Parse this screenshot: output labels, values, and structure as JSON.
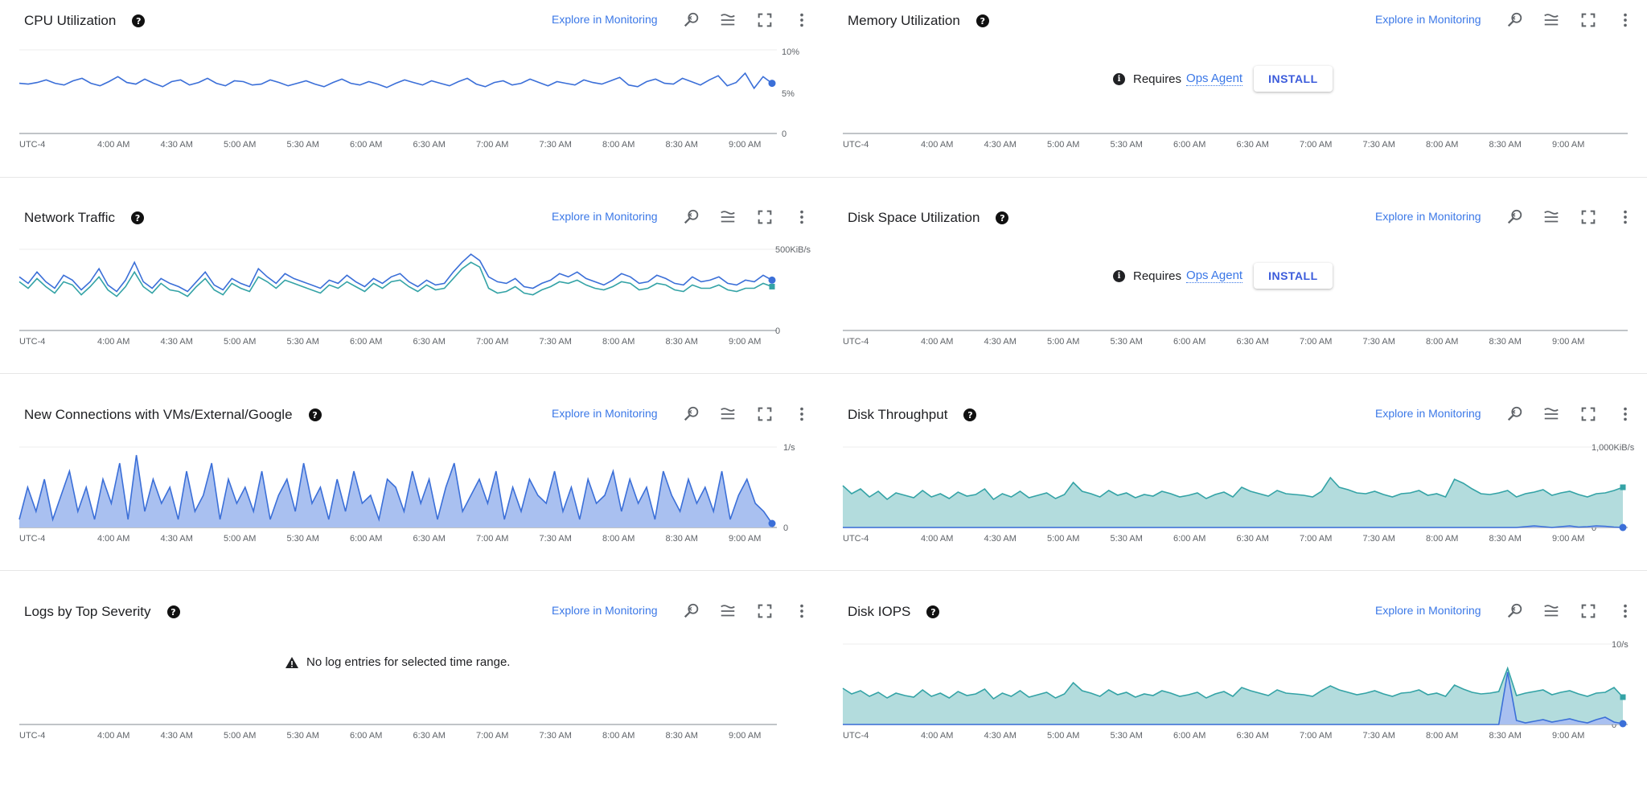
{
  "common": {
    "explore_label": "Explore in Monitoring",
    "timezone": "UTC-4",
    "time_ticks": [
      "4:00 AM",
      "4:30 AM",
      "5:00 AM",
      "5:30 AM",
      "6:00 AM",
      "6:30 AM",
      "7:00 AM",
      "7:30 AM",
      "8:00 AM",
      "8:30 AM",
      "9:00 AM"
    ],
    "requires_label": "Requires",
    "ops_agent_label": "Ops Agent",
    "install_label": "INSTALL",
    "colors": {
      "blue": "#3b6fd8",
      "teal": "#34a3a6",
      "link": "#3b78e7"
    }
  },
  "panels": {
    "cpu": {
      "title": "CPU Utilization",
      "y_ticks": [
        "10%",
        "5%",
        "0"
      ]
    },
    "memory": {
      "title": "Memory Utilization"
    },
    "network": {
      "title": "Network Traffic",
      "y_ticks": [
        "500KiB/s",
        "0"
      ]
    },
    "disk_space": {
      "title": "Disk Space Utilization"
    },
    "connections": {
      "title": "New Connections with VMs/External/Google",
      "y_ticks": [
        "1/s",
        "0"
      ]
    },
    "disk_throughput": {
      "title": "Disk Throughput",
      "y_ticks": [
        "1,000KiB/s",
        "0"
      ]
    },
    "logs": {
      "title": "Logs by Top Severity",
      "empty_message": "No log entries for selected time range."
    },
    "disk_iops": {
      "title": "Disk IOPS",
      "y_ticks": [
        "10/s",
        "0"
      ]
    }
  },
  "chart_data": [
    {
      "type": "line",
      "title": "CPU Utilization",
      "ylim": [
        0,
        10
      ],
      "y_unit": "%",
      "series": [
        {
          "color": "blue",
          "values": [
            6.0,
            5.9,
            6.1,
            6.4,
            6.0,
            5.8,
            6.3,
            6.6,
            6.0,
            5.7,
            6.2,
            6.8,
            6.1,
            5.9,
            6.5,
            6.0,
            5.6,
            6.2,
            6.4,
            5.8,
            6.1,
            6.6,
            6.0,
            5.7,
            6.3,
            6.2,
            5.8,
            5.9,
            6.4,
            6.1,
            5.7,
            6.0,
            6.3,
            5.9,
            5.6,
            6.1,
            6.5,
            6.0,
            5.8,
            6.2,
            5.9,
            5.5,
            6.0,
            6.4,
            6.1,
            5.8,
            6.3,
            6.0,
            5.7,
            6.2,
            6.6,
            5.9,
            5.6,
            6.1,
            6.3,
            5.8,
            6.0,
            6.5,
            6.1,
            5.7,
            6.2,
            6.0,
            5.8,
            6.4,
            6.1,
            5.9,
            6.3,
            6.7,
            5.8,
            5.6,
            6.2,
            6.5,
            6.0,
            5.9,
            6.6,
            6.2,
            5.8,
            6.4,
            6.9,
            5.7,
            6.1,
            7.2,
            5.4,
            6.8,
            6.0
          ]
        }
      ]
    },
    {
      "type": "line",
      "title": "Network Traffic",
      "ylim": [
        0,
        500
      ],
      "y_unit": "KiB/s",
      "series": [
        {
          "color": "blue",
          "values": [
            330,
            290,
            360,
            300,
            260,
            340,
            310,
            250,
            300,
            380,
            280,
            240,
            310,
            420,
            300,
            260,
            320,
            290,
            270,
            240,
            300,
            360,
            280,
            250,
            320,
            290,
            270,
            380,
            330,
            290,
            350,
            320,
            300,
            280,
            260,
            310,
            290,
            340,
            300,
            270,
            320,
            290,
            330,
            350,
            300,
            270,
            310,
            280,
            290,
            360,
            420,
            470,
            430,
            330,
            300,
            290,
            320,
            270,
            260,
            290,
            310,
            350,
            330,
            360,
            320,
            300,
            280,
            310,
            350,
            330,
            290,
            300,
            340,
            320,
            290,
            280,
            330,
            300,
            310,
            330,
            290,
            280,
            310,
            300,
            340,
            310
          ]
        },
        {
          "color": "teal",
          "values": [
            300,
            260,
            320,
            270,
            230,
            300,
            280,
            220,
            270,
            330,
            250,
            210,
            270,
            360,
            270,
            230,
            290,
            250,
            240,
            210,
            270,
            320,
            250,
            220,
            290,
            260,
            240,
            330,
            300,
            260,
            310,
            290,
            270,
            250,
            230,
            280,
            260,
            300,
            270,
            240,
            290,
            260,
            300,
            310,
            270,
            240,
            280,
            250,
            260,
            320,
            380,
            420,
            390,
            260,
            230,
            240,
            270,
            230,
            220,
            250,
            270,
            300,
            290,
            310,
            280,
            260,
            250,
            270,
            300,
            290,
            250,
            260,
            290,
            280,
            250,
            240,
            280,
            260,
            260,
            280,
            250,
            240,
            260,
            260,
            290,
            270
          ]
        }
      ]
    },
    {
      "type": "area",
      "title": "New Connections with VMs/External/Google",
      "ylim": [
        0,
        1
      ],
      "y_unit": "/s",
      "series": [
        {
          "color": "blue",
          "values": [
            0.1,
            0.5,
            0.2,
            0.6,
            0.1,
            0.4,
            0.7,
            0.2,
            0.5,
            0.1,
            0.6,
            0.3,
            0.8,
            0.1,
            0.9,
            0.2,
            0.6,
            0.3,
            0.5,
            0.1,
            0.7,
            0.2,
            0.4,
            0.8,
            0.1,
            0.6,
            0.3,
            0.5,
            0.2,
            0.7,
            0.1,
            0.4,
            0.6,
            0.2,
            0.8,
            0.3,
            0.5,
            0.1,
            0.6,
            0.2,
            0.7,
            0.3,
            0.4,
            0.1,
            0.6,
            0.5,
            0.2,
            0.7,
            0.3,
            0.6,
            0.1,
            0.5,
            0.8,
            0.2,
            0.4,
            0.6,
            0.3,
            0.7,
            0.1,
            0.5,
            0.2,
            0.6,
            0.4,
            0.3,
            0.7,
            0.2,
            0.5,
            0.1,
            0.6,
            0.3,
            0.4,
            0.7,
            0.2,
            0.6,
            0.3,
            0.5,
            0.1,
            0.7,
            0.4,
            0.2,
            0.6,
            0.3,
            0.5,
            0.2,
            0.7,
            0.1,
            0.4,
            0.6,
            0.3,
            0.2,
            0.05
          ]
        }
      ]
    },
    {
      "type": "area",
      "title": "Disk Throughput",
      "ylim": [
        0,
        1000
      ],
      "y_unit": "KiB/s",
      "series": [
        {
          "color": "teal",
          "values": [
            520,
            420,
            480,
            380,
            450,
            350,
            430,
            400,
            370,
            460,
            380,
            420,
            360,
            440,
            390,
            410,
            480,
            350,
            420,
            380,
            450,
            370,
            400,
            430,
            360,
            410,
            560,
            450,
            420,
            380,
            460,
            400,
            430,
            370,
            410,
            390,
            450,
            420,
            380,
            400,
            430,
            360,
            410,
            440,
            380,
            500,
            450,
            420,
            390,
            460,
            420,
            410,
            400,
            380,
            450,
            620,
            500,
            470,
            430,
            420,
            450,
            410,
            380,
            420,
            430,
            460,
            400,
            420,
            380,
            600,
            550,
            480,
            420,
            410,
            430,
            460,
            380,
            420,
            440,
            470,
            400,
            430,
            450,
            410,
            380,
            420,
            430,
            460,
            500
          ]
        },
        {
          "color": "blue",
          "values": [
            0,
            0,
            0,
            0,
            0,
            0,
            0,
            0,
            0,
            0,
            0,
            0,
            0,
            0,
            0,
            0,
            0,
            0,
            0,
            0,
            0,
            0,
            0,
            0,
            0,
            0,
            0,
            0,
            0,
            0,
            0,
            0,
            0,
            0,
            0,
            0,
            0,
            0,
            0,
            0,
            0,
            0,
            0,
            0,
            0,
            0,
            0,
            0,
            0,
            0,
            0,
            0,
            0,
            0,
            0,
            0,
            0,
            0,
            0,
            0,
            0,
            0,
            0,
            0,
            0,
            0,
            0,
            0,
            0,
            0,
            0,
            0,
            0,
            0,
            0,
            0,
            0,
            10,
            20,
            10,
            0,
            10,
            20,
            5,
            10,
            20,
            15,
            5,
            0
          ]
        }
      ]
    },
    {
      "type": "area",
      "title": "Disk IOPS",
      "ylim": [
        0,
        10
      ],
      "y_unit": "/s",
      "series": [
        {
          "color": "teal",
          "values": [
            4.5,
            3.8,
            4.2,
            3.5,
            4.0,
            3.3,
            3.9,
            3.6,
            3.4,
            4.3,
            3.5,
            3.9,
            3.3,
            4.1,
            3.6,
            3.8,
            4.4,
            3.2,
            3.9,
            3.5,
            4.2,
            3.4,
            3.7,
            4.0,
            3.3,
            3.8,
            5.2,
            4.2,
            3.9,
            3.5,
            4.3,
            3.7,
            4.0,
            3.4,
            3.8,
            3.6,
            4.2,
            3.9,
            3.5,
            3.7,
            4.0,
            3.3,
            3.8,
            4.1,
            3.5,
            4.6,
            4.2,
            3.9,
            3.6,
            4.3,
            3.9,
            3.8,
            3.7,
            3.5,
            4.2,
            4.8,
            4.3,
            4.0,
            3.7,
            3.9,
            4.2,
            3.8,
            3.5,
            3.9,
            4.0,
            4.3,
            3.7,
            3.9,
            3.5,
            4.9,
            4.4,
            4.0,
            3.8,
            3.9,
            4.1,
            7.0,
            3.6,
            3.9,
            4.1,
            4.3,
            3.7,
            4.0,
            4.2,
            3.8,
            3.5,
            3.9,
            4.0,
            4.6,
            3.4
          ]
        },
        {
          "color": "blue",
          "values": [
            0,
            0,
            0,
            0,
            0,
            0,
            0,
            0,
            0,
            0,
            0,
            0,
            0,
            0,
            0,
            0,
            0,
            0,
            0,
            0,
            0,
            0,
            0,
            0,
            0,
            0,
            0,
            0,
            0,
            0,
            0,
            0,
            0,
            0,
            0,
            0,
            0,
            0,
            0,
            0,
            0,
            0,
            0,
            0,
            0,
            0,
            0,
            0,
            0,
            0,
            0,
            0,
            0,
            0,
            0,
            0,
            0,
            0,
            0,
            0,
            0,
            0,
            0,
            0,
            0,
            0,
            0,
            0,
            0,
            0,
            0,
            0,
            0,
            0,
            0,
            6.5,
            0.5,
            0.2,
            0.4,
            0.6,
            0.3,
            0.5,
            0.7,
            0.4,
            0.2,
            0.6,
            0.9,
            0.3,
            0.1
          ]
        }
      ]
    }
  ]
}
